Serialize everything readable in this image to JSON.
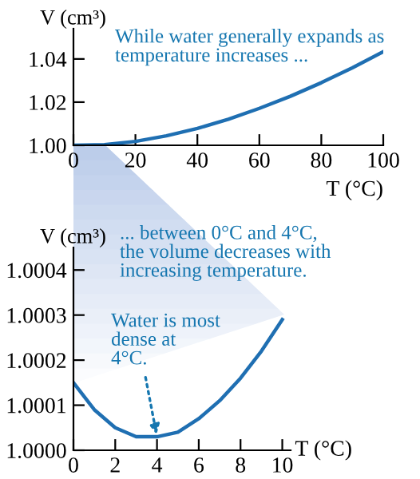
{
  "chart_data": [
    {
      "type": "line",
      "xlabel": "T (°C)",
      "ylabel": "V (cm³)",
      "x": [
        0,
        10,
        20,
        30,
        40,
        50,
        60,
        70,
        80,
        90,
        100
      ],
      "series": [
        {
          "color": "#1f6fb2",
          "values": [
            1.0,
            1.0003,
            1.0018,
            1.0044,
            1.0078,
            1.0121,
            1.0171,
            1.0227,
            1.029,
            1.0359,
            1.0434
          ]
        }
      ],
      "xlim": [
        0,
        100
      ],
      "ylim": [
        1.0,
        1.054
      ],
      "xticks": [
        0,
        20,
        40,
        60,
        80,
        100
      ],
      "yticks": [
        {
          "value": 1.0,
          "label": "1.00"
        },
        {
          "value": 1.02,
          "label": "1.02"
        },
        {
          "value": 1.04,
          "label": "1.04"
        }
      ],
      "annotations": [
        "While water generally expands as\ntemperature increases ..."
      ]
    },
    {
      "type": "line",
      "xlabel": "T (°C)",
      "ylabel": "V (cm³)",
      "x": [
        0,
        1,
        2,
        3,
        4,
        5,
        6,
        7,
        8,
        9,
        10
      ],
      "series": [
        {
          "color": "#1f6fb2",
          "values": [
            1.00015,
            1.00009,
            1.00005,
            1.00003,
            1.00003,
            1.00004,
            1.00007,
            1.00011,
            1.00016,
            1.00022,
            1.00029
          ]
        }
      ],
      "xlim": [
        0,
        10.4
      ],
      "ylim": [
        1.0,
        1.00045
      ],
      "xticks": [
        0,
        2,
        4,
        6,
        8,
        10
      ],
      "yticks": [
        {
          "value": 1.0,
          "label": "1.0000"
        },
        {
          "value": 1.0001,
          "label": "1.0001"
        },
        {
          "value": 1.0002,
          "label": "1.0002"
        },
        {
          "value": 1.0003,
          "label": "1.0003"
        },
        {
          "value": 1.0004,
          "label": "1.0004"
        }
      ],
      "annotations": [
        "... between 0°C and 4°C,\nthe volume decreases with\nincreasing temperature.",
        {
          "text": "Water is most\ndense at\n4°C.",
          "x": 4,
          "y": 1.00003
        }
      ]
    }
  ]
}
